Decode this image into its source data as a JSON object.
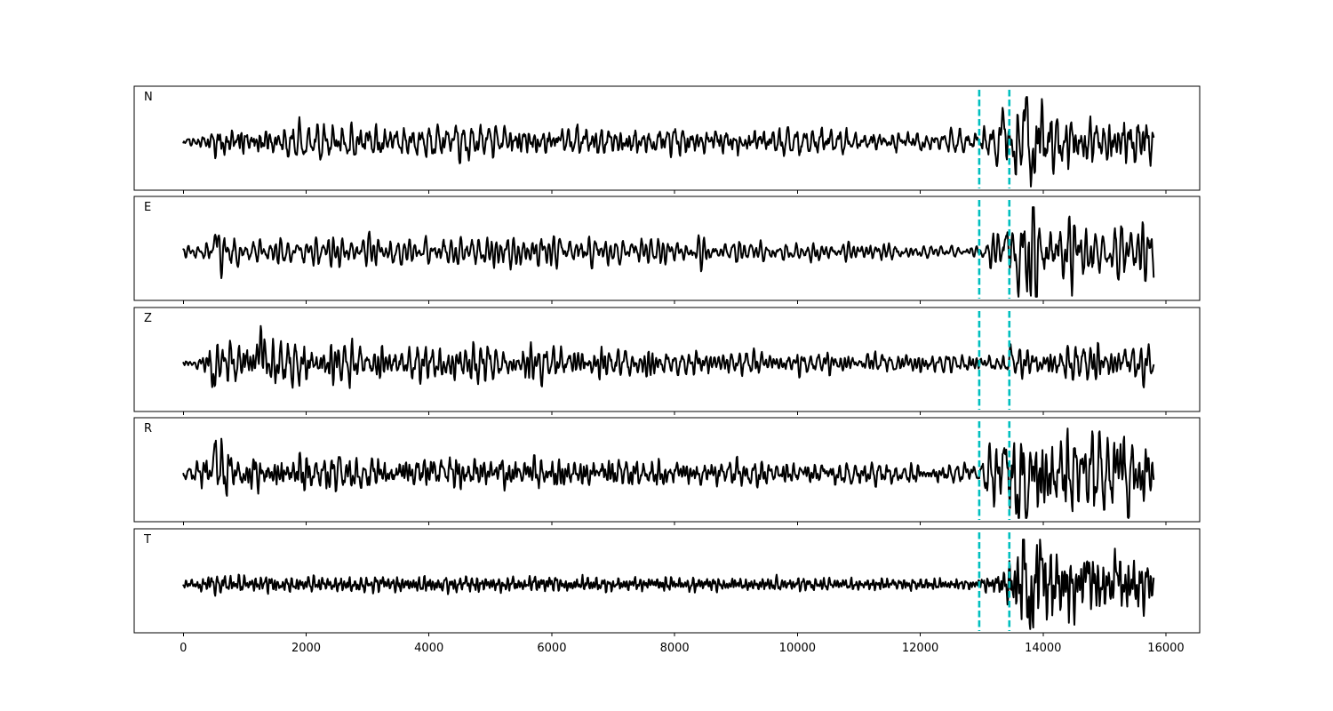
{
  "chart_data": {
    "type": "line",
    "title": "",
    "xlabel": "",
    "ylabel": "",
    "xlim": [
      -800,
      16550
    ],
    "xticks": [
      0,
      2000,
      4000,
      6000,
      8000,
      10000,
      12000,
      14000,
      16000
    ],
    "xtick_labels": [
      "0",
      "2000",
      "4000",
      "6000",
      "8000",
      "10000",
      "12000",
      "14000",
      "16000"
    ],
    "shared_x": true,
    "grid": false,
    "line_color": "#000000",
    "marker_color": "#00bfbf",
    "marker_style": "dashed",
    "markers_x": [
      12960,
      13450
    ],
    "sample_count": 15800,
    "panels": [
      {
        "label": "N",
        "amp": [
          [
            0,
            0.08
          ],
          [
            500,
            0.22
          ],
          [
            600,
            0.32
          ],
          [
            1500,
            0.28
          ],
          [
            2300,
            0.33
          ],
          [
            3400,
            0.3
          ],
          [
            5000,
            0.28
          ],
          [
            5800,
            0.3
          ],
          [
            7500,
            0.26
          ],
          [
            9000,
            0.24
          ],
          [
            11000,
            0.2
          ],
          [
            12900,
            0.18
          ],
          [
            13300,
            0.35
          ],
          [
            13700,
            0.85
          ],
          [
            14200,
            0.55
          ],
          [
            15200,
            0.5
          ],
          [
            15800,
            0.4
          ]
        ],
        "spikes": [
          [
            13720,
            0.92
          ],
          [
            13820,
            -0.78
          ],
          [
            13340,
            0.55
          ],
          [
            13250,
            -0.4
          ],
          [
            13950,
            0.4
          ]
        ]
      },
      {
        "label": "E",
        "amp": [
          [
            0,
            0.12
          ],
          [
            500,
            0.25
          ],
          [
            550,
            0.42
          ],
          [
            1000,
            0.28
          ],
          [
            3000,
            0.3
          ],
          [
            5000,
            0.32
          ],
          [
            7000,
            0.3
          ],
          [
            8000,
            0.25
          ],
          [
            10000,
            0.2
          ],
          [
            12000,
            0.15
          ],
          [
            12900,
            0.12
          ],
          [
            13300,
            0.45
          ],
          [
            13700,
            0.9
          ],
          [
            14200,
            0.7
          ],
          [
            15200,
            0.65
          ],
          [
            15800,
            0.55
          ]
        ],
        "spikes": [
          [
            530,
            0.45
          ],
          [
            13820,
            0.72
          ],
          [
            13780,
            -0.95
          ],
          [
            13600,
            -0.55
          ],
          [
            13430,
            0.35
          ]
        ]
      },
      {
        "label": "Z",
        "amp": [
          [
            0,
            0.06
          ],
          [
            350,
            0.14
          ],
          [
            500,
            0.35
          ],
          [
            800,
            0.4
          ],
          [
            1300,
            0.36
          ],
          [
            1800,
            0.42
          ],
          [
            3000,
            0.3
          ],
          [
            5000,
            0.32
          ],
          [
            6000,
            0.3
          ],
          [
            8000,
            0.22
          ],
          [
            10000,
            0.18
          ],
          [
            12900,
            0.15
          ],
          [
            13600,
            0.22
          ],
          [
            14200,
            0.32
          ],
          [
            15800,
            0.3
          ]
        ],
        "spikes": [
          [
            540,
            0.62
          ],
          [
            525,
            -1.0
          ],
          [
            1270,
            0.48
          ],
          [
            13450,
            0.25
          ],
          [
            13400,
            -0.2
          ]
        ]
      },
      {
        "label": "R",
        "amp": [
          [
            0,
            0.12
          ],
          [
            500,
            0.28
          ],
          [
            550,
            0.45
          ],
          [
            1000,
            0.3
          ],
          [
            3000,
            0.32
          ],
          [
            5000,
            0.3
          ],
          [
            7000,
            0.28
          ],
          [
            9000,
            0.22
          ],
          [
            11000,
            0.18
          ],
          [
            12900,
            0.15
          ],
          [
            13300,
            0.55
          ],
          [
            13700,
            0.85
          ],
          [
            14200,
            0.72
          ],
          [
            15200,
            0.7
          ],
          [
            15800,
            0.55
          ]
        ],
        "spikes": [
          [
            530,
            0.48
          ],
          [
            13350,
            0.6
          ],
          [
            13580,
            -0.6
          ],
          [
            13800,
            0.72
          ],
          [
            13760,
            -0.92
          ],
          [
            15250,
            0.6
          ],
          [
            15380,
            -0.5
          ]
        ]
      },
      {
        "label": "T",
        "amp": [
          [
            0,
            0.08
          ],
          [
            500,
            0.18
          ],
          [
            2000,
            0.16
          ],
          [
            5000,
            0.15
          ],
          [
            8000,
            0.13
          ],
          [
            10000,
            0.12
          ],
          [
            12900,
            0.1
          ],
          [
            13300,
            0.2
          ],
          [
            13700,
            0.9
          ],
          [
            14300,
            0.6
          ],
          [
            15200,
            0.5
          ],
          [
            15800,
            0.35
          ]
        ],
        "spikes": [
          [
            13680,
            0.9
          ],
          [
            13780,
            -0.95
          ],
          [
            13980,
            0.72
          ],
          [
            14700,
            0.45
          ],
          [
            15200,
            0.38
          ]
        ]
      }
    ]
  }
}
